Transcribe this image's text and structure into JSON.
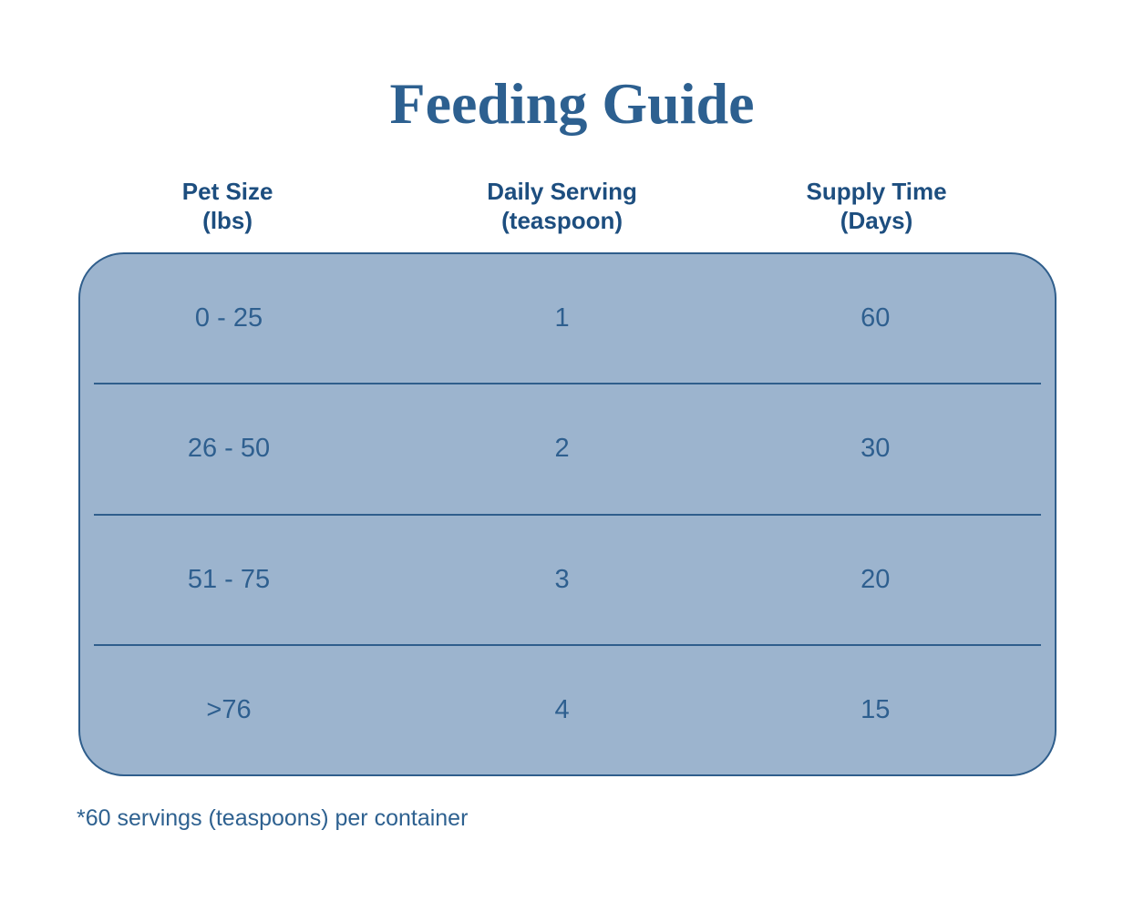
{
  "title": "Feeding Guide",
  "colors": {
    "background": "#ffffff",
    "table_fill": "#9cb4ce",
    "table_stroke": "#2f5e8c",
    "title_text": "#2d6090",
    "header_text": "#1d4e7f",
    "row_text": "#2e5f8f",
    "footnote_text": "#2e6190"
  },
  "table": {
    "columns": [
      {
        "label": "Pet Size",
        "unit": "(lbs)"
      },
      {
        "label": "Daily Serving",
        "unit": "(teaspoon)"
      },
      {
        "label": "Supply Time",
        "unit": "(Days)"
      }
    ],
    "rows": [
      {
        "pet_size": "0 - 25",
        "daily_serving": "1",
        "supply_time": "60"
      },
      {
        "pet_size": "26 - 50",
        "daily_serving": "2",
        "supply_time": "30"
      },
      {
        "pet_size": "51 - 75",
        "daily_serving": "3",
        "supply_time": "20"
      },
      {
        "pet_size": ">76",
        "daily_serving": "4",
        "supply_time": "15"
      }
    ]
  },
  "footnote": "*60 servings (teaspoons) per container",
  "chart_data": {
    "type": "table",
    "title": "Feeding Guide",
    "columns": [
      "Pet Size (lbs)",
      "Daily Serving (teaspoon)",
      "Supply Time (Days)"
    ],
    "rows": [
      [
        "0 - 25",
        "1",
        "60"
      ],
      [
        "26 - 50",
        "2",
        "30"
      ],
      [
        "51 - 75",
        "3",
        "20"
      ],
      [
        ">76",
        "4",
        "15"
      ]
    ],
    "footnote": "*60 servings (teaspoons) per container"
  }
}
